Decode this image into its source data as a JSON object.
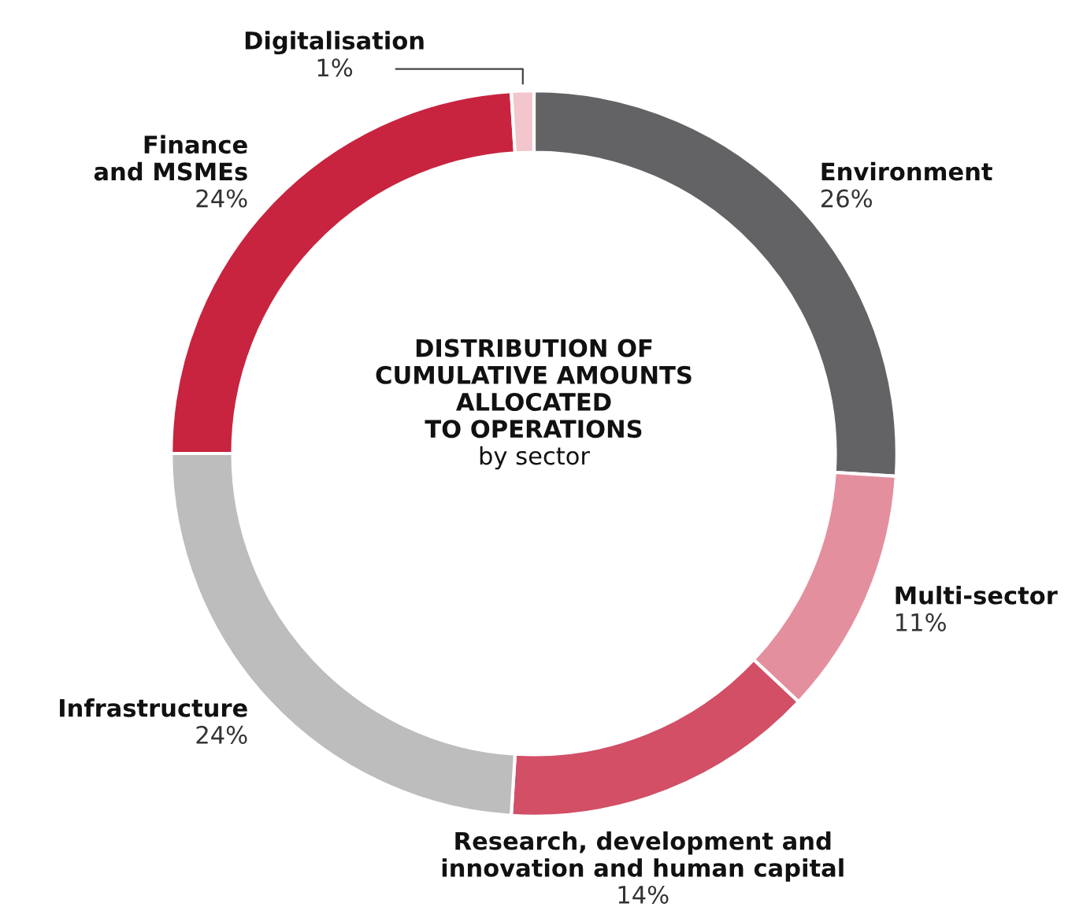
{
  "chart_data": {
    "type": "donut",
    "title": "DISTRIBUTION OF\nCUMULATIVE AMOUNTS\nALLOCATED\nTO OPERATIONS",
    "subtitle": "by sector",
    "categories": [
      "Environment",
      "Multi-sector",
      "Research, development and\ninnovation and human capital",
      "Infrastructure",
      "Finance\nand MSMEs",
      "Digitalisation"
    ],
    "values": [
      26,
      11,
      14,
      24,
      24,
      1
    ],
    "value_labels": [
      "26%",
      "11%",
      "14%",
      "24%",
      "24%",
      "1%"
    ],
    "colors": [
      "#636366",
      "#e48f9e",
      "#d24f66",
      "#bdbdbd",
      "#c8243f",
      "#f2c6cc"
    ]
  }
}
